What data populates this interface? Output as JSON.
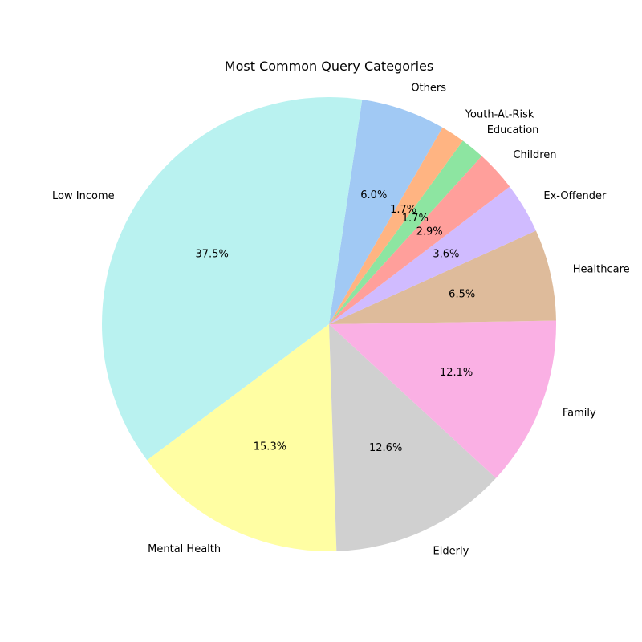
{
  "chart_data": {
    "type": "pie",
    "title": "Most Common Query Categories",
    "start_angle_deg": 60,
    "direction": "counterclockwise",
    "legend": "none",
    "slices": [
      {
        "label": "Others",
        "value": 6.0,
        "pct_text": "6.0%",
        "color": "#a1c9f4"
      },
      {
        "label": "Low Income",
        "value": 37.5,
        "pct_text": "37.5%",
        "color": "#b9f2f0"
      },
      {
        "label": "Mental Health",
        "value": 15.3,
        "pct_text": "15.3%",
        "color": "#fffea3"
      },
      {
        "label": "Elderly",
        "value": 12.6,
        "pct_text": "12.6%",
        "color": "#d0d0d0"
      },
      {
        "label": "Family",
        "value": 12.1,
        "pct_text": "12.1%",
        "color": "#fab0e4"
      },
      {
        "label": "Healthcare",
        "value": 6.5,
        "pct_text": "6.5%",
        "color": "#debb9b"
      },
      {
        "label": "Ex-Offender",
        "value": 3.6,
        "pct_text": "3.6%",
        "color": "#d0bbff"
      },
      {
        "label": "Children",
        "value": 2.9,
        "pct_text": "2.9%",
        "color": "#ff9f9b"
      },
      {
        "label": "Education",
        "value": 1.7,
        "pct_text": "1.7%",
        "color": "#8de5a1"
      },
      {
        "label": "Youth-At-Risk",
        "value": 1.7,
        "pct_text": "1.7%",
        "color": "#ffb482"
      }
    ]
  }
}
